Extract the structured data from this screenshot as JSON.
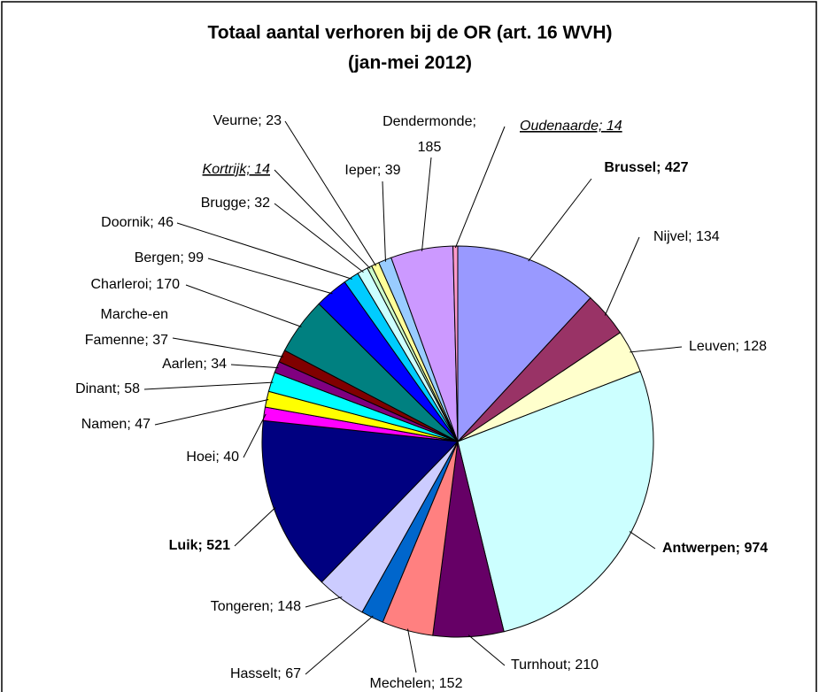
{
  "chart_data": {
    "type": "pie",
    "title": "Totaal aantal verhoren bij de OR (art. 16 WVH)",
    "subtitle": "(jan-mei 2012)",
    "values": [
      427,
      134,
      128,
      974,
      210,
      152,
      67,
      148,
      521,
      40,
      47,
      58,
      34,
      37,
      170,
      99,
      46,
      32,
      14,
      23,
      39,
      185,
      14
    ],
    "value_labels": [
      "Brussel; 427",
      "Nijvel; 134",
      "Leuven; 128",
      "Antwerpen; 974",
      "Turnhout; 210",
      "Mechelen; 152",
      "Hasselt; 67",
      "Tongeren; 148",
      "Luik; 521",
      "Hoei; 40",
      "Namen; 47",
      "Dinant; 58",
      "Aarlen; 34",
      "Marche-en\nFamenne; 37",
      "Charleroi; 170",
      "Bergen; 99",
      "Doornik; 46",
      "Brugge; 32",
      "Kortrijk; 14",
      "Veurne; 23",
      "Ieper; 39",
      "Dendermonde;\n185",
      "Oudenaarde; 14"
    ],
    "colors": [
      "#9999ff",
      "#993366",
      "#ffffcc",
      "#ccffff",
      "#660066",
      "#ff8080",
      "#0066cc",
      "#ccccff",
      "#000080",
      "#ff00ff",
      "#ffff00",
      "#00ffff",
      "#800080",
      "#800000",
      "#008080",
      "#0000ff",
      "#00ccff",
      "#ccffff",
      "#ccffcc",
      "#ffff99",
      "#99ccff",
      "#cc99ff",
      "#ff99cc"
    ]
  }
}
